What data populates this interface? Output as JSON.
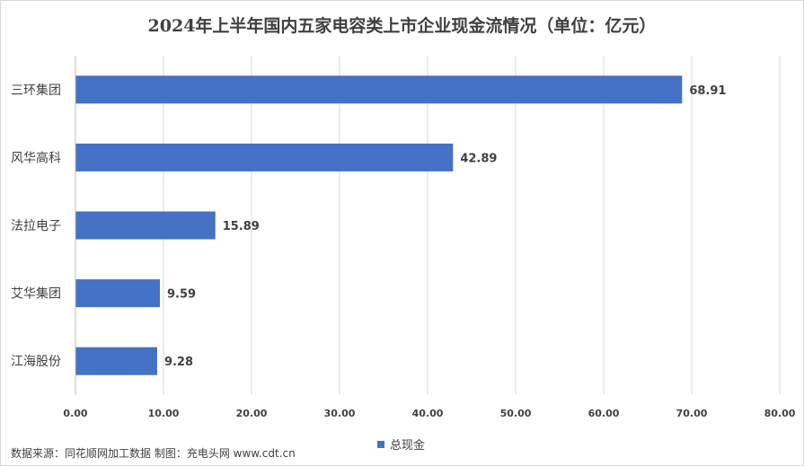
{
  "chart_data": {
    "type": "bar",
    "orientation": "horizontal",
    "title": "2024年上半年国内五家电容类上市企业现金流情况（单位：亿元）",
    "categories": [
      "三环集团",
      "风华高科",
      "法拉电子",
      "艾华集团",
      "江海股份"
    ],
    "series": [
      {
        "name": "总现金",
        "values": [
          68.91,
          42.89,
          15.89,
          9.59,
          9.28
        ],
        "color": "#4472C4"
      }
    ],
    "data_labels": [
      "68.91",
      "42.89",
      "15.89",
      "9.59",
      "9.28"
    ],
    "xlim": [
      0,
      80
    ],
    "x_ticks": [
      "0.00",
      "10.00",
      "20.00",
      "30.00",
      "40.00",
      "50.00",
      "60.00",
      "70.00",
      "80.00"
    ],
    "grid": true,
    "legend_position": "bottom"
  },
  "source_note": "数据来源：同花顺网加工数据 制图：充电头网 www.cdt.cn"
}
